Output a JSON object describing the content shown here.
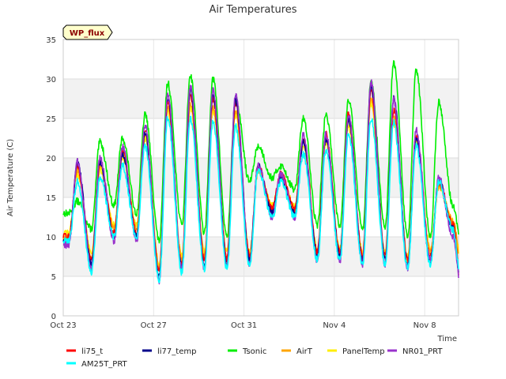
{
  "chart_data": {
    "type": "line",
    "title": "Air Temperatures",
    "xlabel": "Time",
    "ylabel": "Air Temperature (C)",
    "badge": "WP_flux",
    "xlim": [
      "2023-10-23",
      "2023-11-09T12:00"
    ],
    "ylim": [
      0,
      35
    ],
    "yticks": [
      0,
      5,
      10,
      15,
      20,
      25,
      30,
      35
    ],
    "xticks": [
      {
        "date": "2023-10-23",
        "label": "Oct 23"
      },
      {
        "date": "2023-10-27",
        "label": "Oct 27"
      },
      {
        "date": "2023-10-31",
        "label": "Oct 31"
      },
      {
        "date": "2023-11-04",
        "label": "Nov 4"
      },
      {
        "date": "2023-11-08",
        "label": "Nov 8"
      }
    ],
    "grid": true,
    "banded_background": true,
    "legend_position": "bottom",
    "daily_extremes": {
      "dates": [
        "2023-10-23",
        "2023-10-24",
        "2023-10-25",
        "2023-10-26",
        "2023-10-27",
        "2023-10-28",
        "2023-10-29",
        "2023-10-30",
        "2023-10-31",
        "2023-11-01",
        "2023-11-02",
        "2023-11-03",
        "2023-11-04",
        "2023-11-05",
        "2023-11-06",
        "2023-11-07",
        "2023-11-08",
        "2023-11-09"
      ],
      "note_min_time": "06:00",
      "note_max_time": "15:00"
    },
    "series": [
      {
        "name": "li75_t",
        "color": "#ff0000",
        "daily_min": [
          10.0,
          7.0,
          10.5,
          10.5,
          5.5,
          6.5,
          7.0,
          7.0,
          7.5,
          13.5,
          13.5,
          8.0,
          8.0,
          7.5,
          7.5,
          7.0,
          7.5,
          11.5
        ],
        "daily_max": [
          19.0,
          19.5,
          21.0,
          23.5,
          27.0,
          28.0,
          27.5,
          27.0,
          19.0,
          18.0,
          22.5,
          23.0,
          25.5,
          28.5,
          26.0,
          23.0,
          17.0,
          3.5
        ]
      },
      {
        "name": "li77_temp",
        "color": "#00008b",
        "daily_min": [
          9.5,
          6.5,
          10.0,
          10.0,
          5.0,
          6.0,
          6.5,
          6.5,
          7.0,
          13.0,
          13.0,
          7.5,
          7.5,
          7.0,
          7.0,
          6.5,
          7.0,
          11.0
        ],
        "daily_max": [
          19.5,
          19.5,
          20.5,
          23.0,
          27.5,
          28.5,
          28.0,
          27.5,
          19.0,
          17.5,
          22.0,
          22.5,
          25.0,
          29.0,
          27.5,
          22.5,
          17.0,
          3.5
        ]
      },
      {
        "name": "Tsonic",
        "color": "#00ee00",
        "daily_min": [
          13.0,
          11.0,
          14.0,
          13.0,
          9.5,
          11.5,
          10.5,
          10.0,
          17.0,
          17.5,
          16.0,
          11.5,
          11.5,
          11.0,
          11.0,
          10.0,
          10.0,
          14.0
        ],
        "daily_max": [
          14.5,
          22.0,
          22.5,
          25.5,
          29.5,
          30.5,
          30.0,
          27.5,
          21.5,
          19.0,
          25.0,
          25.5,
          27.5,
          29.5,
          32.0,
          31.0,
          27.0,
          9.0
        ]
      },
      {
        "name": "AirT",
        "color": "#ffa500",
        "daily_min": [
          10.0,
          7.5,
          11.0,
          11.0,
          6.0,
          7.0,
          7.5,
          7.5,
          7.5,
          13.5,
          13.5,
          8.0,
          8.0,
          7.5,
          7.5,
          7.0,
          8.0,
          12.0
        ],
        "daily_max": [
          18.5,
          19.0,
          20.5,
          23.0,
          26.5,
          27.0,
          26.5,
          26.0,
          18.5,
          17.5,
          22.0,
          22.5,
          24.5,
          27.5,
          25.0,
          22.5,
          16.5,
          6.5
        ]
      },
      {
        "name": "PanelTemp",
        "color": "#ffee00",
        "daily_min": [
          10.5,
          8.0,
          11.5,
          11.5,
          6.5,
          7.5,
          8.0,
          8.0,
          8.0,
          14.0,
          14.0,
          8.5,
          8.5,
          8.0,
          8.0,
          7.5,
          8.5,
          12.0
        ],
        "daily_max": [
          18.0,
          18.5,
          20.0,
          22.5,
          26.0,
          26.5,
          26.0,
          25.5,
          18.5,
          17.5,
          21.5,
          22.0,
          24.0,
          27.0,
          24.5,
          22.0,
          16.5,
          7.0
        ]
      },
      {
        "name": "NR01_PRT",
        "color": "#9932cc",
        "daily_min": [
          9.0,
          6.0,
          9.5,
          9.5,
          4.5,
          6.0,
          6.0,
          6.0,
          6.5,
          12.5,
          12.5,
          7.0,
          7.0,
          6.5,
          6.5,
          6.0,
          7.0,
          10.0
        ],
        "daily_max": [
          19.5,
          20.0,
          21.5,
          24.0,
          28.0,
          29.0,
          28.5,
          28.0,
          19.0,
          18.0,
          23.0,
          23.0,
          25.5,
          29.5,
          27.5,
          23.5,
          17.5,
          3.5
        ]
      },
      {
        "name": "AM25T_PRT",
        "color": "#00ffff",
        "daily_min": [
          9.5,
          5.5,
          10.0,
          10.0,
          4.5,
          5.5,
          6.0,
          6.0,
          6.5,
          12.5,
          12.5,
          7.0,
          7.0,
          6.5,
          6.5,
          6.0,
          6.5,
          11.0
        ],
        "daily_max": [
          17.0,
          17.5,
          19.0,
          21.5,
          25.0,
          25.0,
          24.5,
          24.0,
          18.5,
          17.0,
          20.5,
          21.0,
          23.0,
          25.0,
          24.5,
          21.5,
          17.0,
          4.0
        ]
      }
    ]
  }
}
